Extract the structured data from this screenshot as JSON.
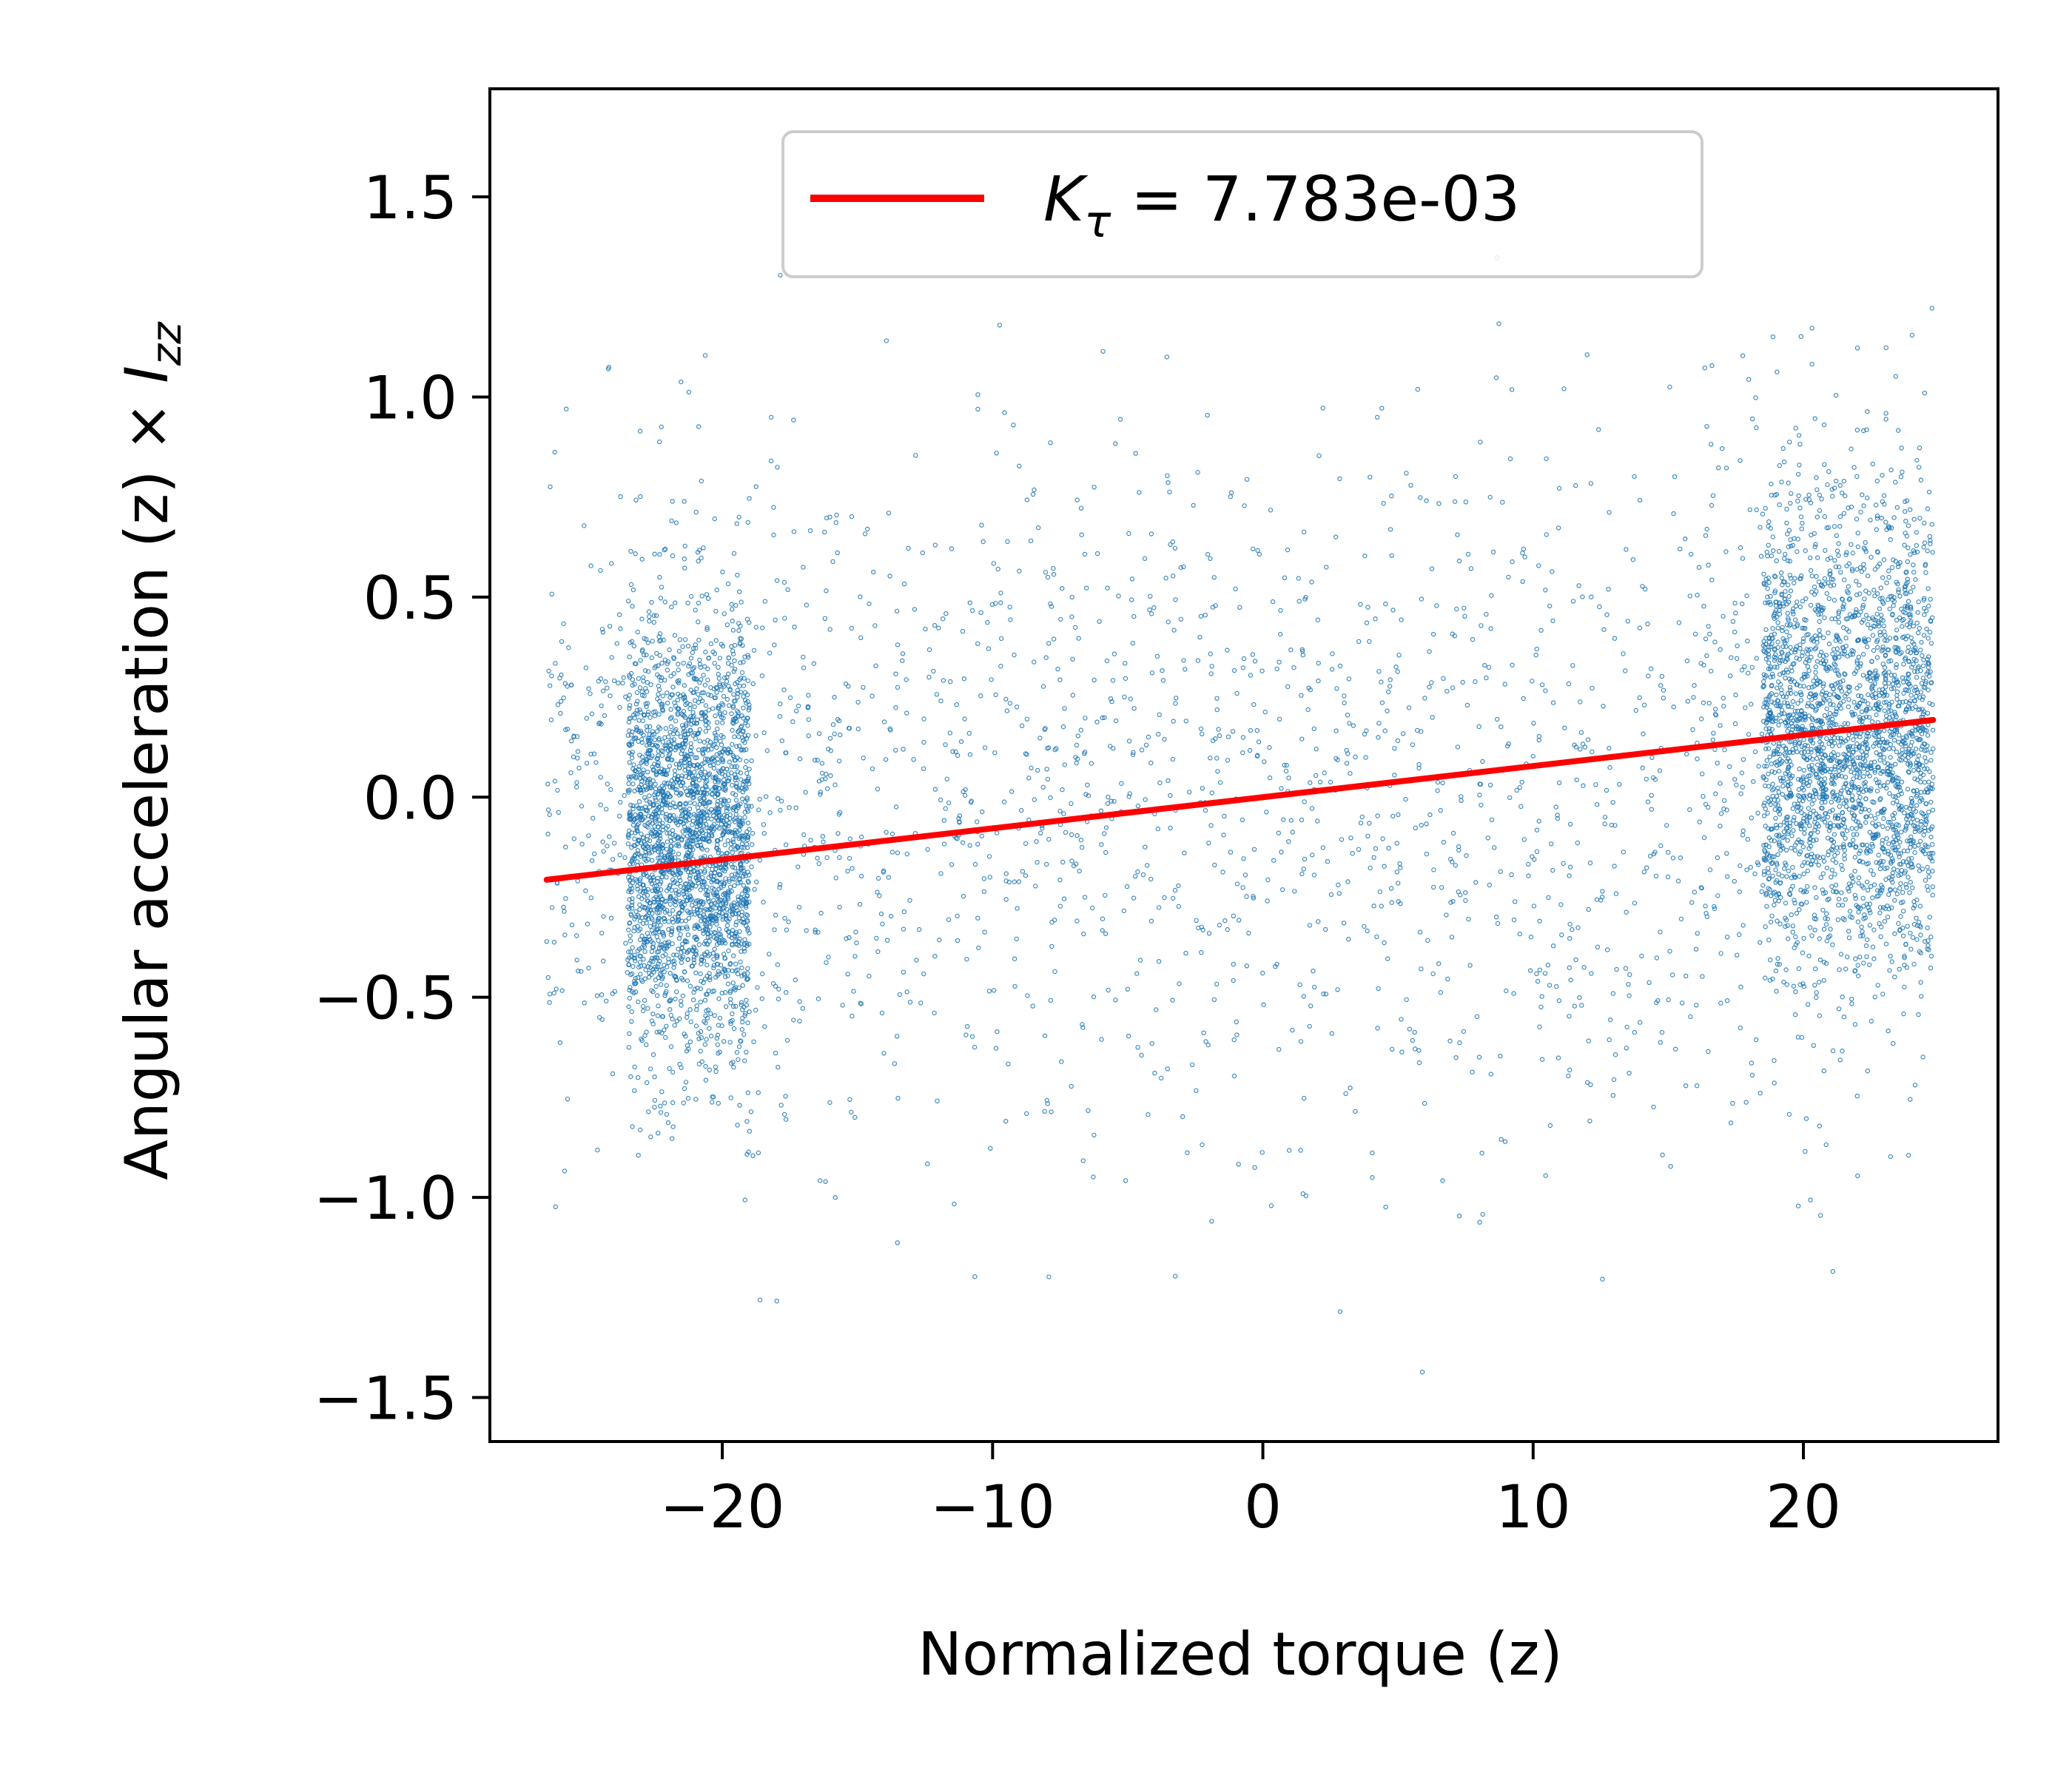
{
  "chart_data": {
    "type": "scatter",
    "xlabel": "Normalized torque (z)",
    "ylabel": {
      "prefix": "Angular acceleration (z) × ",
      "symbol": "I",
      "subscript": "zz"
    },
    "xlim": [
      -28.6,
      27.2
    ],
    "ylim": [
      -1.61,
      1.77
    ],
    "x_ticks": [
      {
        "value": -20,
        "label": "−20"
      },
      {
        "value": -10,
        "label": "−10"
      },
      {
        "value": 0,
        "label": "0"
      },
      {
        "value": 10,
        "label": "10"
      },
      {
        "value": 20,
        "label": "20"
      }
    ],
    "y_ticks": [
      {
        "value": 1.5,
        "label": "1.5"
      },
      {
        "value": 1.0,
        "label": "1.0"
      },
      {
        "value": 0.5,
        "label": "0.5"
      },
      {
        "value": 0.0,
        "label": "0.0"
      },
      {
        "value": -0.5,
        "label": "−0.5"
      },
      {
        "value": -1.0,
        "label": "−1.0"
      },
      {
        "value": -1.5,
        "label": "−1.5"
      }
    ],
    "grid": false,
    "legend": {
      "position": "top-center",
      "entries": [
        {
          "symbol": "K",
          "subscript": "τ",
          "text": " = 7.783e-03",
          "color": "#ff0000"
        }
      ]
    },
    "series": [
      {
        "kind": "scatter",
        "color": "#1f77b4",
        "marker": "hollow-circle",
        "point_count": 7000,
        "clusters": [
          {
            "x_range": [
              -23.5,
              -19.0
            ],
            "y_range": [
              -0.9,
              0.7
            ],
            "weight": 0.34
          },
          {
            "x_range": [
              18.5,
              24.8
            ],
            "y_range": [
              -0.7,
              1.0
            ],
            "weight": 0.32
          },
          {
            "x_range": [
              -26.5,
              -16.0
            ],
            "y_range": [
              -1.4,
              1.4
            ],
            "weight": 0.08
          },
          {
            "x_range": [
              16.0,
              24.8
            ],
            "y_range": [
              -1.3,
              1.6
            ],
            "weight": 0.08
          },
          {
            "x_range": [
              -16.0,
              16.0
            ],
            "y_range": [
              -1.4,
              1.4
            ],
            "weight": 0.18
          }
        ]
      },
      {
        "name": "Kτ = 7.783e-03",
        "kind": "line",
        "color": "#ff0000",
        "slope": 0.007783,
        "intercept": 0.0,
        "x": [
          -26.5,
          24.8
        ],
        "y": [
          -0.2063,
          0.193
        ]
      }
    ]
  },
  "colors": {
    "scatter": "#1f77b4",
    "fit_line": "#ff0000",
    "axes": "#000000",
    "legend_border": "#cccccc"
  }
}
